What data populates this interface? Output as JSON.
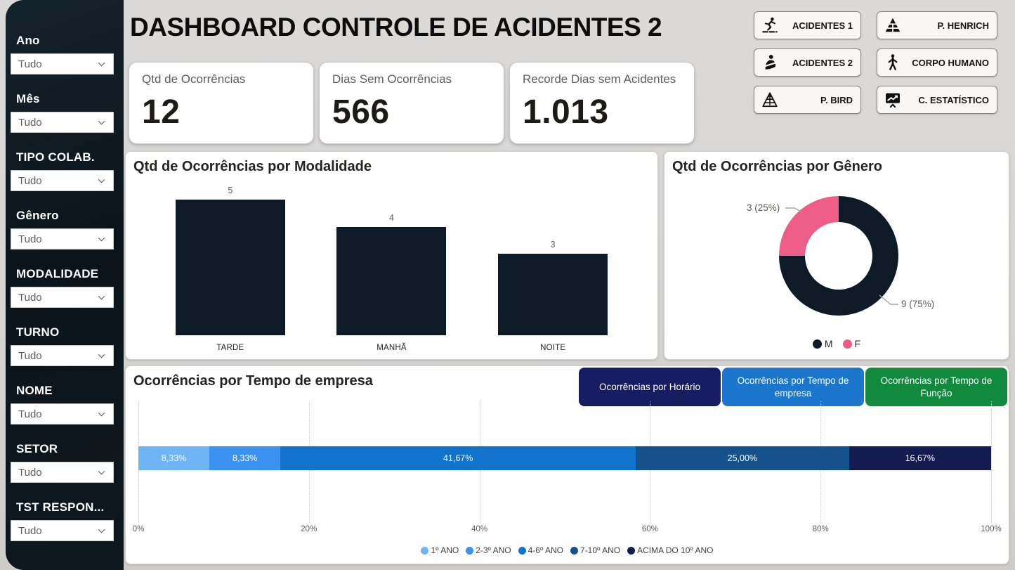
{
  "header": {
    "title": "DASHBOARD CONTROLE DE ACIDENTES 2",
    "nav_buttons": [
      {
        "label": "ACIDENTES 1",
        "icon": "slipping-person-icon"
      },
      {
        "label": "P. HENRICH",
        "icon": "pyramid-solid-icon"
      },
      {
        "label": "ACIDENTES 2",
        "icon": "injured-person-icon"
      },
      {
        "label": "CORPO HUMANO",
        "icon": "human-body-icon"
      },
      {
        "label": "P. BIRD",
        "icon": "pyramid-outline-icon"
      },
      {
        "label": "C. ESTATÍSTICO",
        "icon": "chart-board-icon"
      }
    ]
  },
  "sidebar": {
    "filters": [
      {
        "label": "Ano",
        "value": "Tudo"
      },
      {
        "label": "Mês",
        "value": "Tudo"
      },
      {
        "label": "TIPO COLAB.",
        "value": "Tudo"
      },
      {
        "label": "Gênero",
        "value": "Tudo"
      },
      {
        "label": "MODALIDADE",
        "value": "Tudo"
      },
      {
        "label": "TURNO",
        "value": "Tudo"
      },
      {
        "label": "NOME",
        "value": "Tudo"
      },
      {
        "label": "SETOR",
        "value": "Tudo"
      },
      {
        "label": "TST RESPON...",
        "value": "Tudo"
      }
    ]
  },
  "kpis": [
    {
      "label": "Qtd de Ocorrências",
      "value": "12"
    },
    {
      "label": "Dias Sem Ocorrências",
      "value": "566"
    },
    {
      "label": "Recorde Dias sem Acidentes",
      "value": "1.013"
    }
  ],
  "chart_data": [
    {
      "type": "bar",
      "title": "Qtd de Ocorrências por Modalidade",
      "categories": [
        "TARDE",
        "MANHÃ",
        "NOITE"
      ],
      "values": [
        5,
        4,
        3
      ],
      "bar_color": "#0E1A26",
      "ylim": [
        0,
        5
      ],
      "grid": false,
      "data_labels": true
    },
    {
      "type": "pie",
      "donut": true,
      "title": "Qtd de Ocorrências por Gênero",
      "labels": [
        "M",
        "F"
      ],
      "values": [
        9,
        3
      ],
      "percents": [
        75,
        25
      ],
      "callouts": [
        "9 (75%)",
        "3 (25%)"
      ],
      "colors": [
        "#0E1A26",
        "#EE5D87"
      ],
      "legend_position": "bottom"
    },
    {
      "type": "bar",
      "subtype": "stacked-horizontal-100pct",
      "title": "Ocorrências por Tempo de empresa",
      "series": [
        {
          "name": "1º ANO",
          "value": 8.33,
          "display": "8,33%",
          "color": "#6FB4F4"
        },
        {
          "name": "2-3º ANO",
          "value": 8.33,
          "display": "8,33%",
          "color": "#3B92F0"
        },
        {
          "name": "4-6º ANO",
          "value": 41.67,
          "display": "41,67%",
          "color": "#1273CD"
        },
        {
          "name": "7-10º ANO",
          "value": 25.0,
          "display": "25,00%",
          "color": "#15528C"
        },
        {
          "name": "ACIMA DO 10º ANO",
          "value": 16.67,
          "display": "16,67%",
          "color": "#141B4E"
        }
      ],
      "x_ticks": [
        "0%",
        "20%",
        "40%",
        "60%",
        "80%",
        "100%"
      ],
      "xlim": [
        0,
        100
      ],
      "grid": true,
      "legend_position": "bottom"
    }
  ],
  "bottom_tabs": [
    {
      "label": "Ocorrências por Horário",
      "color": "#181C60"
    },
    {
      "label": "Ocorrências por Tempo de empresa",
      "color": "#1B76CC"
    },
    {
      "label": "Ocorrências por Tempo de Função",
      "color": "#128A3E"
    }
  ]
}
